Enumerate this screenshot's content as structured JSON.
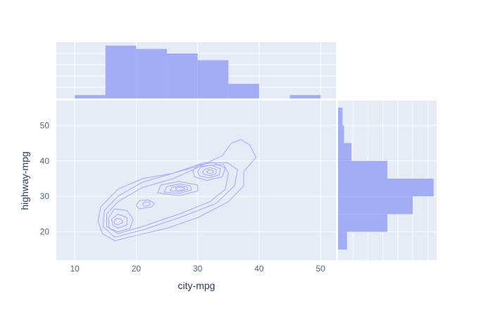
{
  "chart_data": {
    "type": "scatter",
    "subtype": "joint-contour-with-marginal-histograms",
    "title": "",
    "xlabel": "city-mpg",
    "ylabel": "highway-mpg",
    "xlim": [
      7,
      52.5
    ],
    "ylim": [
      12,
      57
    ],
    "x_ticks": [
      10,
      20,
      30,
      40,
      50
    ],
    "y_ticks": [
      20,
      30,
      40,
      50
    ],
    "grid": true,
    "legend": "none",
    "colors": {
      "plot_bg": "#e5ecf6",
      "grid": "#ffffff",
      "bars": "#a3acf7",
      "contour": "#a3acf7",
      "tick_text": "#506784",
      "axis_title": "#2a3f5f"
    },
    "histogram_top": {
      "orientation": "vertical",
      "variable": "city-mpg",
      "bins": [
        {
          "x0": 10,
          "x1": 15,
          "count": 3
        },
        {
          "x0": 15,
          "x1": 20,
          "count": 47
        },
        {
          "x0": 20,
          "x1": 25,
          "count": 44
        },
        {
          "x0": 25,
          "x1": 30,
          "count": 40
        },
        {
          "x0": 30,
          "x1": 35,
          "count": 34
        },
        {
          "x0": 35,
          "x1": 40,
          "count": 13
        },
        {
          "x0": 40,
          "x1": 45,
          "count": 0
        },
        {
          "x0": 45,
          "x1": 50,
          "count": 3
        }
      ]
    },
    "histogram_right": {
      "orientation": "horizontal",
      "variable": "highway-mpg",
      "bins": [
        {
          "y0": 15,
          "y1": 20,
          "count": 6
        },
        {
          "y0": 20,
          "y1": 25,
          "count": 33
        },
        {
          "y0": 25,
          "y1": 30,
          "count": 50
        },
        {
          "y0": 30,
          "y1": 35,
          "count": 64
        },
        {
          "y0": 35,
          "y1": 40,
          "count": 33
        },
        {
          "y0": 40,
          "y1": 45,
          "count": 9
        },
        {
          "y0": 45,
          "y1": 50,
          "count": 4
        },
        {
          "y0": 50,
          "y1": 55,
          "count": 3
        }
      ]
    },
    "density_contours": {
      "variables": [
        "city-mpg",
        "highway-mpg"
      ],
      "levels": [
        {
          "level": 1,
          "polygon": [
            [
              16.5,
              17.5
            ],
            [
              20,
              19
            ],
            [
              25,
              21
            ],
            [
              30,
              24
            ],
            [
              35,
              28.5
            ],
            [
              37.5,
              33
            ],
            [
              37.5,
              37
            ],
            [
              39.5,
              41
            ],
            [
              38.5,
              44.5
            ],
            [
              37,
              46
            ],
            [
              35.5,
              45
            ],
            [
              34,
              41.5
            ],
            [
              31,
              39
            ],
            [
              26,
              36.5
            ],
            [
              21,
              35
            ],
            [
              17,
              32
            ],
            [
              14.2,
              27
            ],
            [
              13.8,
              23
            ],
            [
              14.5,
              19.5
            ]
          ]
        },
        {
          "level": 2,
          "polygon": [
            [
              16.5,
              18.5
            ],
            [
              21,
              20.5
            ],
            [
              27,
              24
            ],
            [
              33,
              28
            ],
            [
              36,
              33
            ],
            [
              36.5,
              37.5
            ],
            [
              34.8,
              39.5
            ],
            [
              31,
              39.5
            ],
            [
              26,
              36.5
            ],
            [
              21,
              34
            ],
            [
              17,
              30
            ],
            [
              14.8,
              26
            ],
            [
              14.6,
              21.5
            ]
          ]
        },
        {
          "level": 3,
          "polygon": [
            [
              17,
              19.5
            ],
            [
              21,
              21.5
            ],
            [
              27,
              25
            ],
            [
              32,
              28.5
            ],
            [
              34.5,
              32
            ],
            [
              35,
              36.5
            ],
            [
              34.2,
              39
            ],
            [
              30.5,
              38.5
            ],
            [
              26,
              35
            ],
            [
              21,
              32.5
            ],
            [
              17,
              28.5
            ],
            [
              15.2,
              25
            ],
            [
              15.2,
              21.5
            ]
          ]
        },
        {
          "level": 4,
          "polygon": [
            [
              17,
              20
            ],
            [
              19,
              21
            ],
            [
              19.5,
              23.5
            ],
            [
              18.5,
              26
            ],
            [
              16.5,
              26.5
            ],
            [
              15.5,
              24
            ],
            [
              15.6,
              21
            ]
          ]
        },
        {
          "level": 5,
          "polygon": [
            [
              17,
              21
            ],
            [
              18.5,
              22
            ],
            [
              18.5,
              24
            ],
            [
              17,
              25
            ],
            [
              16,
              23.5
            ],
            [
              16.2,
              21.8
            ]
          ]
        },
        {
          "level": 6,
          "polygon": [
            [
              17,
              22
            ],
            [
              17.8,
              22.6
            ],
            [
              17.6,
              23.5
            ],
            [
              16.8,
              23.8
            ],
            [
              16.4,
              23
            ],
            [
              16.5,
              22.2
            ]
          ]
        },
        {
          "level": 7,
          "polygon": [
            [
              20.5,
              26.5
            ],
            [
              22.5,
              27
            ],
            [
              23,
              28
            ],
            [
              22,
              29
            ],
            [
              20.5,
              28.8
            ],
            [
              20,
              27.5
            ]
          ]
        },
        {
          "level": 8,
          "polygon": [
            [
              21.3,
              27.2
            ],
            [
              22.3,
              27.6
            ],
            [
              22.2,
              28.4
            ],
            [
              21.3,
              28.4
            ],
            [
              21,
              27.8
            ]
          ]
        },
        {
          "level": 9,
          "polygon": [
            [
              23.5,
              31
            ],
            [
              27,
              30.2
            ],
            [
              30,
              31.5
            ],
            [
              30,
              33.2
            ],
            [
              27,
              34.2
            ],
            [
              24,
              33.2
            ]
          ]
        },
        {
          "level": 10,
          "polygon": [
            [
              24.5,
              31.2
            ],
            [
              27,
              30.8
            ],
            [
              29,
              31.8
            ],
            [
              28.8,
              33
            ],
            [
              27,
              33.5
            ],
            [
              25,
              32.8
            ]
          ]
        },
        {
          "level": 11,
          "polygon": [
            [
              25.5,
              31.6
            ],
            [
              27,
              31.3
            ],
            [
              28.4,
              32
            ],
            [
              28.3,
              32.6
            ],
            [
              27,
              33
            ],
            [
              25.8,
              32.5
            ]
          ]
        },
        {
          "level": 12,
          "polygon": [
            [
              26.4,
              31.8
            ],
            [
              27.2,
              31.7
            ],
            [
              27.9,
              32.1
            ],
            [
              27.7,
              32.5
            ],
            [
              26.9,
              32.6
            ],
            [
              26.4,
              32.3
            ]
          ]
        },
        {
          "level": 13,
          "polygon": [
            [
              29.5,
              35.5
            ],
            [
              31.5,
              34.5
            ],
            [
              34,
              35.5
            ],
            [
              34.5,
              38
            ],
            [
              32.5,
              39.5
            ],
            [
              30,
              38.8
            ],
            [
              29.2,
              37.2
            ]
          ]
        },
        {
          "level": 14,
          "polygon": [
            [
              30.3,
              35.8
            ],
            [
              31.8,
              35.2
            ],
            [
              33.5,
              36
            ],
            [
              33.7,
              37.8
            ],
            [
              32.2,
              38.8
            ],
            [
              30.5,
              38.2
            ],
            [
              30,
              37
            ]
          ]
        },
        {
          "level": 15,
          "polygon": [
            [
              31,
              36.2
            ],
            [
              32,
              35.8
            ],
            [
              33,
              36.4
            ],
            [
              33,
              37.6
            ],
            [
              32,
              38.1
            ],
            [
              31.1,
              37.6
            ],
            [
              30.8,
              36.9
            ]
          ]
        },
        {
          "level": 16,
          "polygon": [
            [
              31.6,
              36.6
            ],
            [
              32.2,
              36.4
            ],
            [
              32.6,
              36.9
            ],
            [
              32.4,
              37.4
            ],
            [
              31.8,
              37.5
            ],
            [
              31.5,
              37
            ]
          ]
        }
      ]
    }
  }
}
